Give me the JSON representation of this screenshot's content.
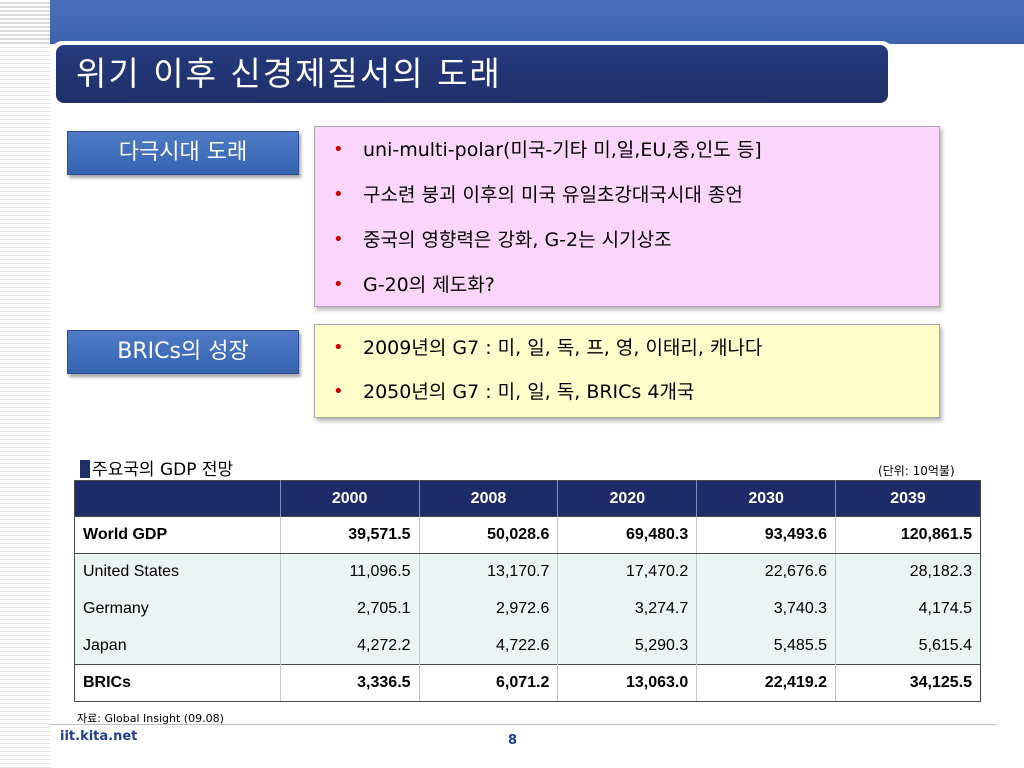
{
  "header": {
    "title": "위기 이후 신경제질서의 도래"
  },
  "sections": [
    {
      "label": "다극시대 도래",
      "bullets": [
        "uni-multi-polar(미국-기타 미,일,EU,중,인도 등]",
        "구소련 붕괴 이후의 미국 유일초강대국시대 종언",
        "중국의 영향력은 강화, G-2는 시기상조",
        "G-20의 제도화?"
      ]
    },
    {
      "label": "BRICs의 성장",
      "bullets": [
        "2009년의 G7 : 미, 일, 독, 프, 영, 이태리, 캐나다",
        "2050년의 G7 : 미, 일, 독, BRICs 4개국"
      ]
    }
  ],
  "table": {
    "title": "주요국의 GDP 전망",
    "unit": "(단위: 10억불)",
    "columns": [
      "",
      "2000",
      "2008",
      "2020",
      "2030",
      "2039"
    ],
    "rows": [
      {
        "name": "World GDP",
        "values": [
          "39,571.5",
          "50,028.6",
          "69,480.3",
          "93,493.6",
          "120,861.5"
        ]
      },
      {
        "name": "United States",
        "values": [
          "11,096.5",
          "13,170.7",
          "17,470.2",
          "22,676.6",
          "28,182.3"
        ]
      },
      {
        "name": "Germany",
        "values": [
          "2,705.1",
          "2,972.6",
          "3,274.7",
          "3,740.3",
          "4,174.5"
        ]
      },
      {
        "name": "Japan",
        "values": [
          "4,272.2",
          "4,722.6",
          "5,290.3",
          "5,485.5",
          "5,615.4"
        ]
      },
      {
        "name": "BRICs",
        "values": [
          "3,336.5",
          "6,071.2",
          "13,063.0",
          "22,419.2",
          "34,125.5"
        ]
      }
    ],
    "source": "자료: Global Insight (09.08)"
  },
  "footer": {
    "site": "iit.kita.net",
    "page": "8"
  },
  "colors": {
    "title_bg": "#1f2f6a",
    "label_bg": "#3f6dbb",
    "pink_box": "#fcd5fa",
    "yellow_box": "#ffffcc",
    "bullet": "#cc0000",
    "table_header": "#1f2a68",
    "table_country_bg": "#eaf4f2"
  }
}
